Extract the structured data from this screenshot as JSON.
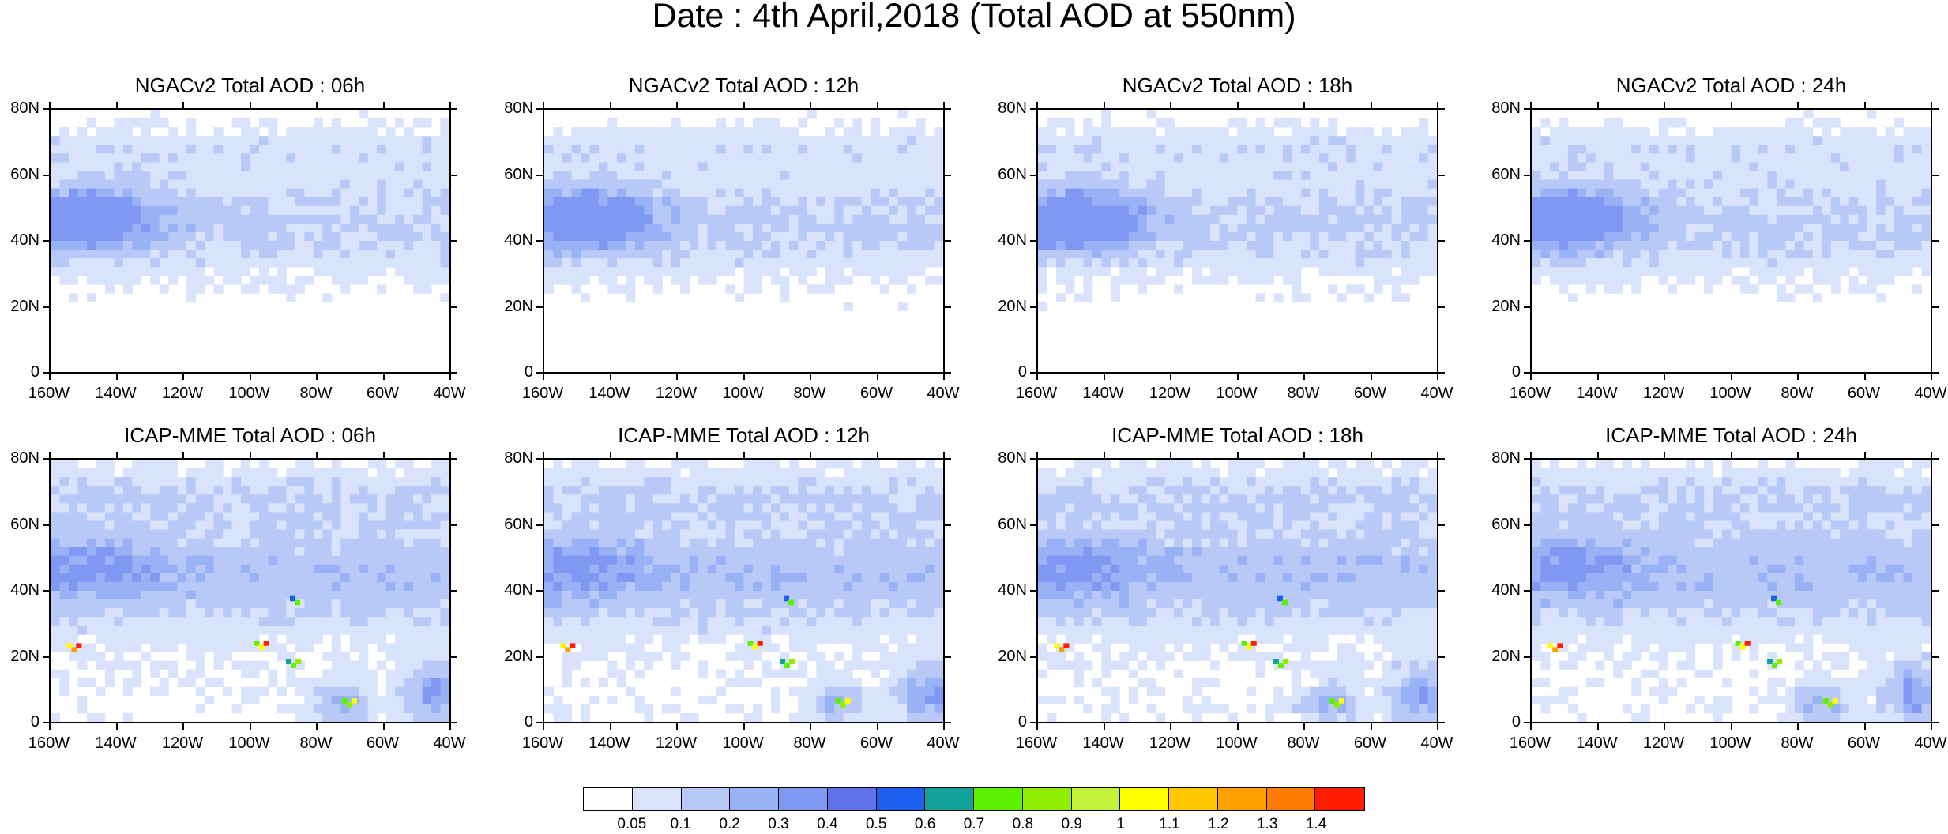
{
  "title": "Date : 4th April,2018 (Total AOD at 550nm)",
  "panels": [
    {
      "title": "NGACv2 Total AOD : 06h",
      "model": "NGACv2",
      "hour": "06h"
    },
    {
      "title": "NGACv2 Total AOD : 12h",
      "model": "NGACv2",
      "hour": "12h"
    },
    {
      "title": "NGACv2 Total AOD : 18h",
      "model": "NGACv2",
      "hour": "18h"
    },
    {
      "title": "NGACv2 Total AOD : 24h",
      "model": "NGACv2",
      "hour": "24h"
    },
    {
      "title": "ICAP-MME Total AOD : 06h",
      "model": "ICAP-MME",
      "hour": "06h"
    },
    {
      "title": "ICAP-MME Total AOD : 12h",
      "model": "ICAP-MME",
      "hour": "12h"
    },
    {
      "title": "ICAP-MME Total AOD : 18h",
      "model": "ICAP-MME",
      "hour": "18h"
    },
    {
      "title": "ICAP-MME Total AOD : 24h",
      "model": "ICAP-MME",
      "hour": "24h"
    }
  ],
  "lat_labels": [
    "80N",
    "60N",
    "40N",
    "20N",
    "0"
  ],
  "lon_labels": [
    "160W",
    "140W",
    "120W",
    "100W",
    "80W",
    "60W",
    "40W"
  ],
  "colorbar": {
    "labels": [
      "0.05",
      "0.1",
      "0.2",
      "0.3",
      "0.4",
      "0.5",
      "0.6",
      "0.7",
      "0.8",
      "0.9",
      "1",
      "1.1",
      "1.2",
      "1.3",
      "1.4"
    ],
    "colors": [
      "#ffffff",
      "#d9e3fb",
      "#b8c9f7",
      "#98b2f5",
      "#7f98f2",
      "#5f72ec",
      "#1f5ff0",
      "#12a29a",
      "#5df000",
      "#8fee00",
      "#c2f23c",
      "#ffff00",
      "#ffc800",
      "#ffa000",
      "#ff7a00",
      "#ff1e00"
    ]
  },
  "colors": {
    "ocean_haze": "#c9d6fa",
    "haze_mid": "#a9bdf6",
    "haze_dark": "#7f94ef",
    "coast": "#000000"
  }
}
